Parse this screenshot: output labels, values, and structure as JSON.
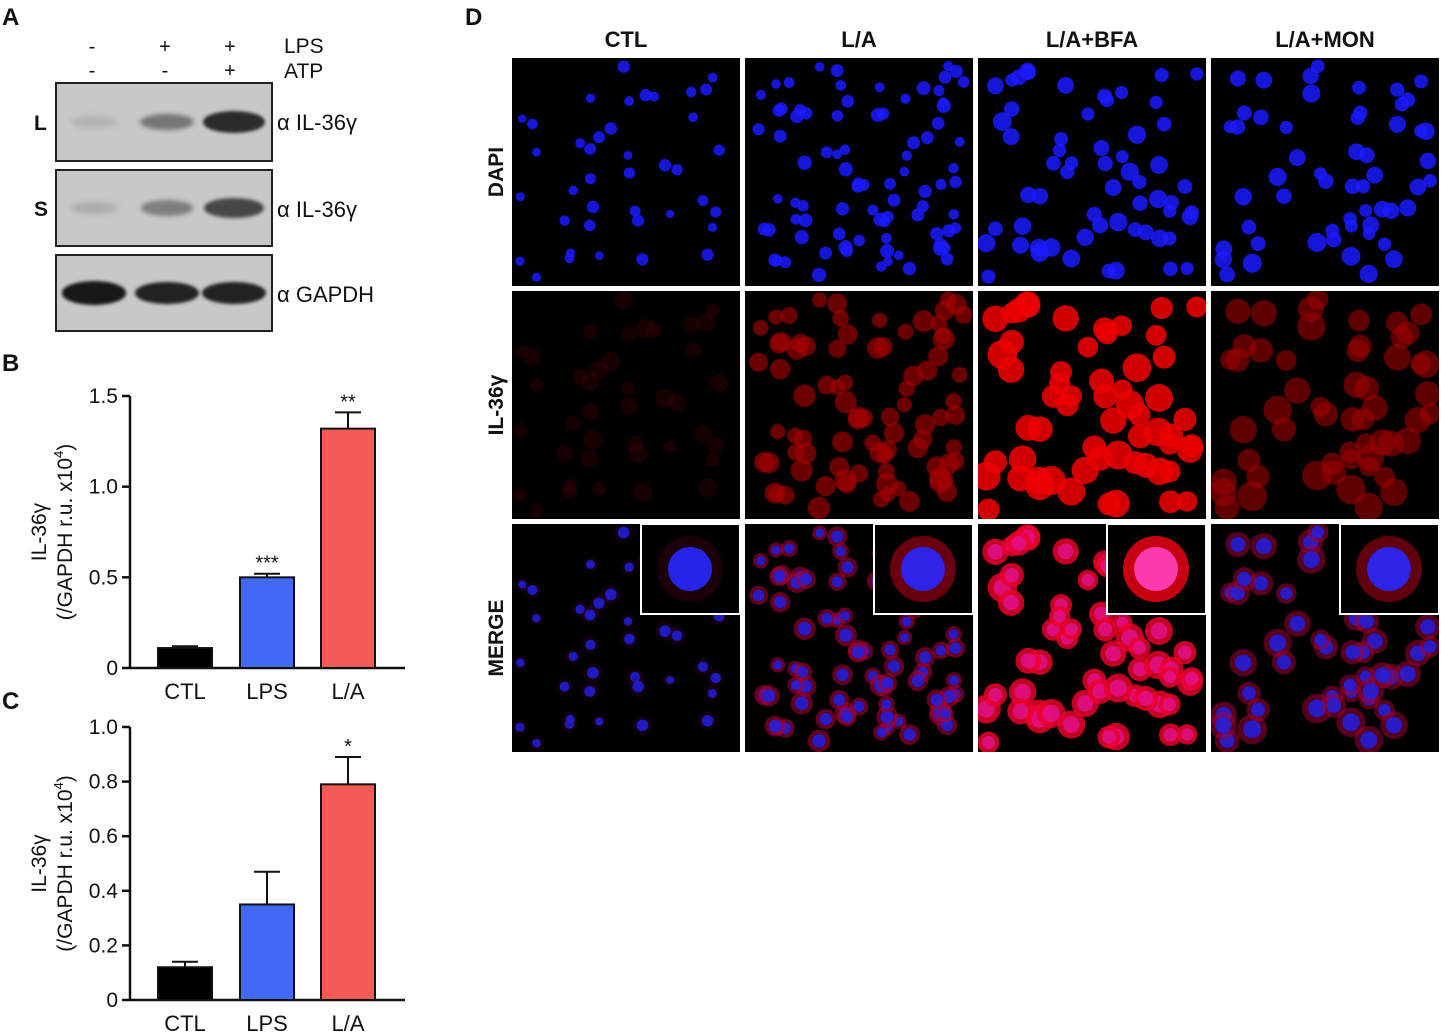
{
  "panels": {
    "A": "A",
    "B": "B",
    "C": "C",
    "D": "D"
  },
  "panelA": {
    "conditions": [
      {
        "lps": "-",
        "atp": "-"
      },
      {
        "lps": "+",
        "atp": "-"
      },
      {
        "lps": "+",
        "atp": "+"
      }
    ],
    "row_labels": {
      "lps": "LPS",
      "atp": "ATP"
    },
    "blots": [
      {
        "side": "L",
        "antibody": "α IL-36γ",
        "intensity": [
          0.12,
          0.45,
          0.85
        ]
      },
      {
        "side": "S",
        "antibody": "α IL-36γ",
        "intensity": [
          0.15,
          0.4,
          0.7
        ]
      },
      {
        "side": "",
        "antibody": "α GAPDH",
        "intensity": [
          0.95,
          0.9,
          0.9
        ]
      }
    ]
  },
  "chart_data": [
    {
      "type": "bar",
      "panel": "B",
      "categories": [
        "CTL",
        "LPS",
        "L/A"
      ],
      "values": [
        0.11,
        0.5,
        1.32
      ],
      "errors": [
        0.01,
        0.02,
        0.09
      ],
      "significance": [
        "",
        "***",
        "**"
      ],
      "colors": [
        "#000000",
        "#4169f5",
        "#f45b55"
      ],
      "ylabel_line1": "IL-36γ",
      "ylabel_line2": "(/GAPDH r.u. x10",
      "ylabel_sup": "4",
      "ylabel_end": ")",
      "ylim": [
        0,
        1.5
      ],
      "yticks": [
        "0",
        "0.5",
        "1.0",
        "1.5"
      ],
      "ytick_values": [
        0,
        0.5,
        1.0,
        1.5
      ]
    },
    {
      "type": "bar",
      "panel": "C",
      "categories": [
        "CTL",
        "LPS",
        "L/A"
      ],
      "values": [
        0.12,
        0.35,
        0.79
      ],
      "errors": [
        0.02,
        0.12,
        0.1
      ],
      "significance": [
        "",
        "",
        "*"
      ],
      "colors": [
        "#000000",
        "#4169f5",
        "#f45b55"
      ],
      "ylabel_line1": "IL-36γ",
      "ylabel_line2": "(/GAPDH r.u. x10",
      "ylabel_sup": "4",
      "ylabel_end": ")",
      "ylim": [
        0,
        1.0
      ],
      "yticks": [
        "0",
        "0.2",
        "0.4",
        "0.6",
        "0.8",
        "1.0"
      ],
      "ytick_values": [
        0,
        0.2,
        0.4,
        0.6,
        0.8,
        1.0
      ]
    }
  ],
  "panelD": {
    "columns": [
      "CTL",
      "L/A",
      "L/A+BFA",
      "L/A+MON"
    ],
    "rows": [
      "DAPI",
      "IL-36γ",
      "MERGE"
    ],
    "red_level": [
      0.08,
      0.55,
      0.9,
      0.5
    ],
    "cell_counts": [
      40,
      85,
      60,
      55
    ]
  }
}
